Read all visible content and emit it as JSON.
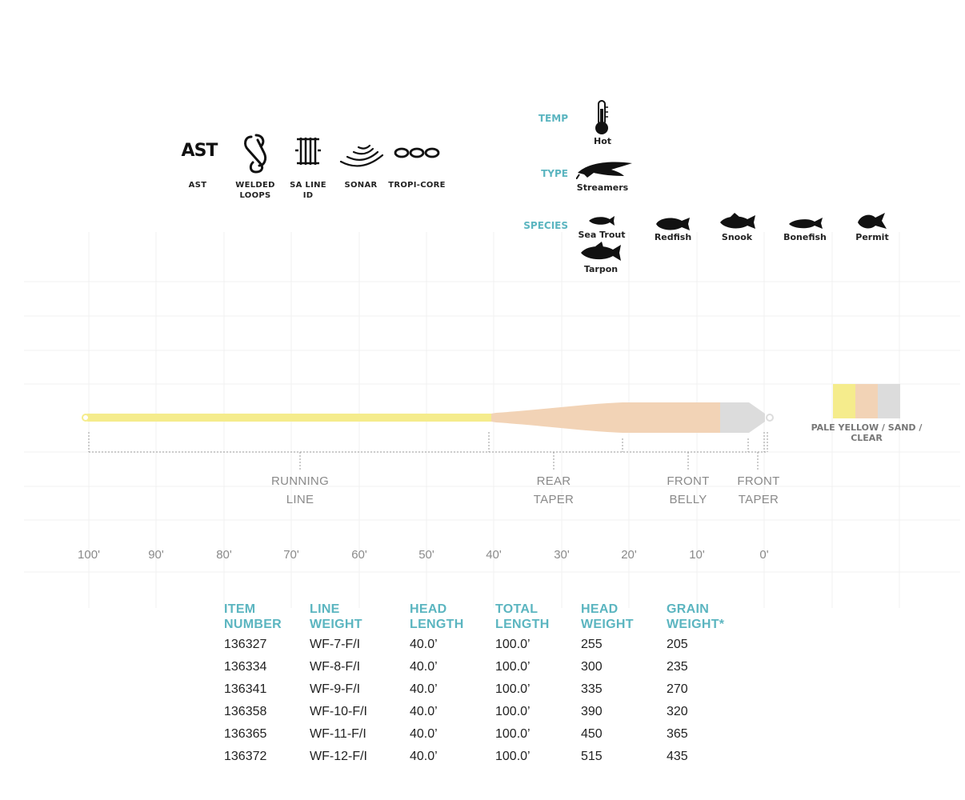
{
  "features": [
    {
      "id": "ast",
      "icon": "ast-text-icon",
      "icon_text": "AST",
      "label": "AST"
    },
    {
      "id": "welded-loops",
      "icon": "welded-loops-icon",
      "label": "WELDED LOOPS"
    },
    {
      "id": "sa-line-id",
      "icon": "line-id-icon",
      "label": "SA LINE ID"
    },
    {
      "id": "sonar",
      "icon": "sonar-icon",
      "label": "SONAR"
    },
    {
      "id": "tropi-core",
      "icon": "tropi-core-icon",
      "label": "TROPI-CORE"
    }
  ],
  "conditions": {
    "temp": {
      "label": "TEMP",
      "icon": "thermometer-icon",
      "value": "Hot"
    },
    "type": {
      "label": "TYPE",
      "icon": "streamer-fly-icon",
      "value": "Streamers"
    },
    "species": {
      "label": "SPECIES",
      "items": [
        {
          "name": "Sea Trout",
          "icon": "sea-trout-icon"
        },
        {
          "name": "Redfish",
          "icon": "redfish-icon"
        },
        {
          "name": "Snook",
          "icon": "snook-icon"
        },
        {
          "name": "Bonefish",
          "icon": "bonefish-icon"
        },
        {
          "name": "Permit",
          "icon": "permit-icon"
        },
        {
          "name": "Tarpon",
          "icon": "tarpon-icon"
        }
      ]
    }
  },
  "line_diagram": {
    "sections": [
      {
        "name": "RUNNING LINE",
        "line1": "RUNNING",
        "line2": "LINE"
      },
      {
        "name": "REAR TAPER",
        "line1": "REAR",
        "line2": "TAPER"
      },
      {
        "name": "FRONT BELLY",
        "line1": "FRONT",
        "line2": "BELLY"
      },
      {
        "name": "FRONT TAPER",
        "line1": "FRONT",
        "line2": "TAPER"
      }
    ],
    "ticks": [
      "100'",
      "90'",
      "80'",
      "70'",
      "60'",
      "50'",
      "40'",
      "30'",
      "20'",
      "10'",
      "0'"
    ],
    "colors": {
      "running_line": "#f5ec8c",
      "head": "#f2d3b6",
      "tip": "#dcdcdc"
    },
    "color_label": "PALE YELLOW / SAND / CLEAR",
    "swatches": [
      "#f5ec8c",
      "#f2d3b6",
      "#dcdcdc"
    ]
  },
  "specs": {
    "headers": [
      {
        "l1": "ITEM",
        "l2": "NUMBER"
      },
      {
        "l1": "LINE",
        "l2": "WEIGHT"
      },
      {
        "l1": "HEAD",
        "l2": "LENGTH"
      },
      {
        "l1": "TOTAL",
        "l2": "LENGTH"
      },
      {
        "l1": "HEAD",
        "l2": "WEIGHT"
      },
      {
        "l1": "GRAIN",
        "l2": "WEIGHT*"
      }
    ],
    "rows": [
      [
        "136327",
        "WF-7-F/I",
        "40.0’",
        "100.0’",
        "255",
        "205"
      ],
      [
        "136334",
        "WF-8-F/I",
        "40.0’",
        "100.0’",
        "300",
        "235"
      ],
      [
        "136341",
        "WF-9-F/I",
        "40.0’",
        "100.0’",
        "335",
        "270"
      ],
      [
        "136358",
        "WF-10-F/I",
        "40.0’",
        "100.0’",
        "390",
        "320"
      ],
      [
        "136365",
        "WF-11-F/I",
        "40.0’",
        "100.0’",
        "450",
        "365"
      ],
      [
        "136372",
        "WF-12-F/I",
        "40.0’",
        "100.0’",
        "515",
        "435"
      ]
    ]
  },
  "accent_color": "#5bb5c0"
}
